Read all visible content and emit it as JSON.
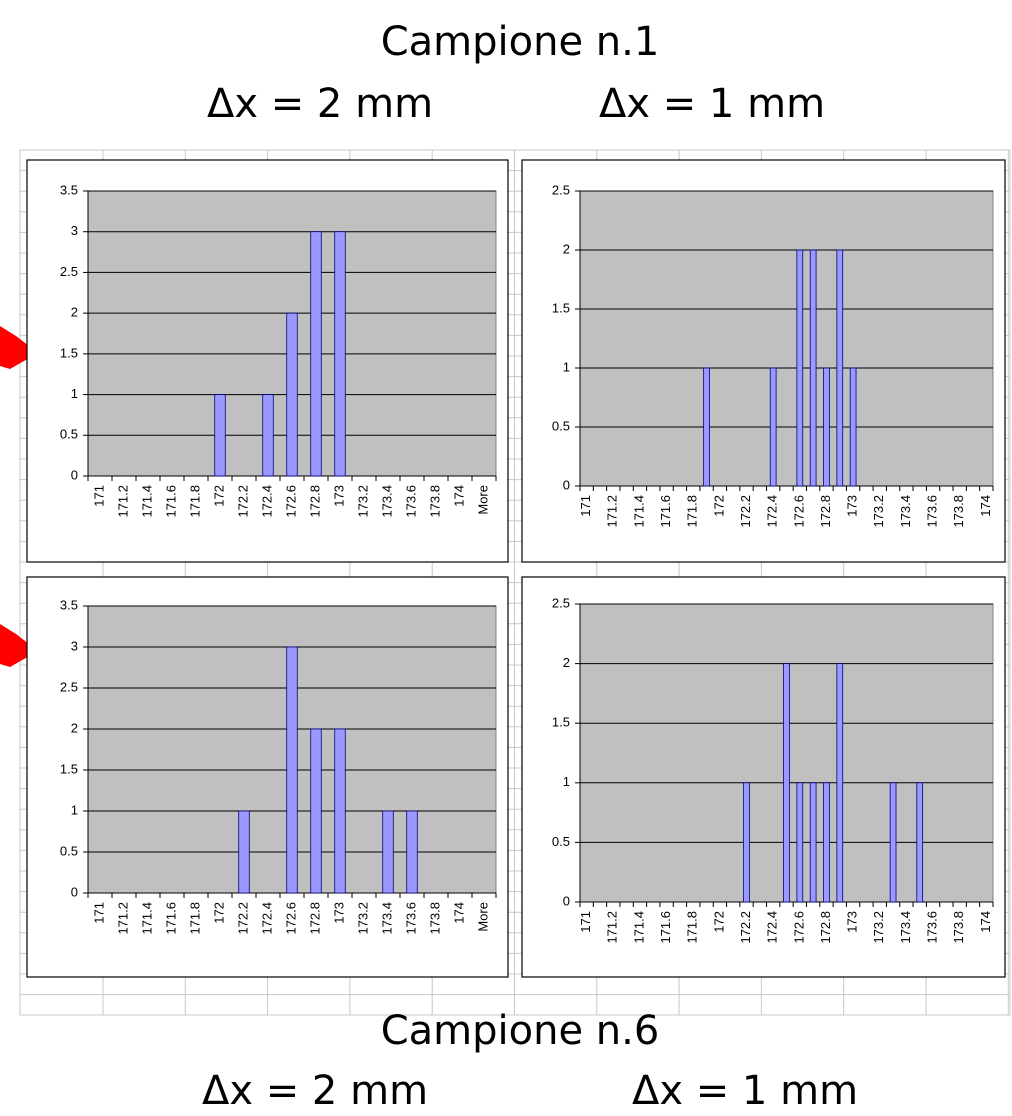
{
  "header": {
    "title": "Campione n.1",
    "left": "Δx = 2 mm",
    "right": "Δx = 1 mm"
  },
  "footer": {
    "title": "Campione n.6",
    "left": "Δx = 2 mm",
    "right": "Δx = 1 mm"
  },
  "chart_data": [
    {
      "type": "bar",
      "color": "#9999ff",
      "grid": true,
      "categories": [
        "171",
        "171.2",
        "171.4",
        "171.6",
        "171.8",
        "172",
        "172.2",
        "172.4",
        "172.6",
        "172.8",
        "173",
        "173.2",
        "173.4",
        "173.6",
        "173.8",
        "174",
        "More"
      ],
      "values": [
        0,
        0,
        0,
        0,
        0,
        1,
        0,
        1,
        2,
        3,
        3,
        0,
        0,
        0,
        0,
        0,
        0
      ],
      "ylim": [
        0,
        3.5
      ],
      "yticks": [
        0,
        0.5,
        1,
        1.5,
        2,
        2.5,
        3,
        3.5
      ]
    },
    {
      "type": "bar",
      "color": "#9999ff",
      "grid": true,
      "categories": [
        "171",
        null,
        "171.2",
        null,
        "171.4",
        null,
        "171.6",
        null,
        "171.8",
        null,
        "172",
        null,
        "172.2",
        null,
        "172.4",
        null,
        "172.6",
        null,
        "172.8",
        null,
        "173",
        null,
        "173.2",
        null,
        "173.4",
        null,
        "173.6",
        null,
        "173.8",
        null,
        "174"
      ],
      "values": [
        0,
        0,
        0,
        0,
        0,
        0,
        0,
        0,
        0,
        1,
        0,
        0,
        0,
        0,
        1,
        0,
        2,
        2,
        1,
        2,
        1,
        0,
        0,
        0,
        0,
        0,
        0,
        0,
        0,
        0,
        0
      ],
      "ylim": [
        0,
        2.5
      ],
      "yticks": [
        0,
        0.5,
        1,
        1.5,
        2,
        2.5
      ]
    },
    {
      "type": "bar",
      "color": "#9999ff",
      "grid": true,
      "categories": [
        "171",
        "171.2",
        "171.4",
        "171.6",
        "171.8",
        "172",
        "172.2",
        "172.4",
        "172.6",
        "172.8",
        "173",
        "173.2",
        "173.4",
        "173.6",
        "173.8",
        "174",
        "More"
      ],
      "values": [
        0,
        0,
        0,
        0,
        0,
        0,
        1,
        0,
        3,
        2,
        2,
        0,
        1,
        1,
        0,
        0,
        0
      ],
      "ylim": [
        0,
        3.5
      ],
      "yticks": [
        0,
        0.5,
        1,
        1.5,
        2,
        2.5,
        3,
        3.5
      ]
    },
    {
      "type": "bar",
      "color": "#9999ff",
      "grid": true,
      "categories": [
        "171",
        null,
        "171.2",
        null,
        "171.4",
        null,
        "171.6",
        null,
        "171.8",
        null,
        "172",
        null,
        "172.2",
        null,
        "172.4",
        null,
        "172.6",
        null,
        "172.8",
        null,
        "173",
        null,
        "173.2",
        null,
        "173.4",
        null,
        "173.6",
        null,
        "173.8",
        null,
        "174"
      ],
      "values": [
        0,
        0,
        0,
        0,
        0,
        0,
        0,
        0,
        0,
        0,
        0,
        0,
        1,
        0,
        0,
        2,
        1,
        1,
        1,
        2,
        0,
        0,
        0,
        1,
        0,
        1,
        0,
        0,
        0,
        0,
        0
      ],
      "ylim": [
        0,
        2.5
      ],
      "yticks": [
        0,
        0.5,
        1,
        1.5,
        2,
        2.5
      ]
    }
  ]
}
